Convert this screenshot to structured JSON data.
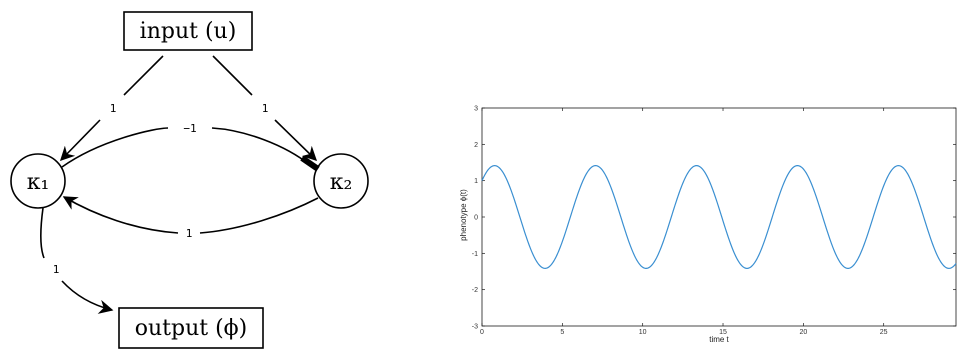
{
  "diagram": {
    "nodes": {
      "input": "input (u)",
      "output": "output (ϕ)",
      "k1": "κ₁",
      "k2": "κ₂"
    },
    "edges": {
      "input_to_k1": "1",
      "input_to_k2": "1",
      "k1_to_k2": "−1",
      "k2_to_k1": "1",
      "k1_to_output": "1"
    }
  },
  "chart_data": {
    "type": "line",
    "title": "",
    "xlabel": "time t",
    "ylabel": "phenotype ϕ(t)",
    "xlim": [
      0,
      29.5
    ],
    "ylim": [
      -3,
      3
    ],
    "x_ticks": [
      0,
      5,
      10,
      15,
      20,
      25
    ],
    "y_ticks": [
      -3,
      -2,
      -1,
      0,
      1,
      2,
      3
    ],
    "grid": false,
    "series": [
      {
        "color": "#3a8fd1",
        "function": "sqrt(2)*sin(t + pi/4)",
        "x": [
          0,
          0.785,
          2.356,
          3.927,
          5.498,
          7.069,
          8.639,
          10.21,
          11.781,
          13.352,
          14.923,
          16.493,
          18.064,
          19.635,
          21.206,
          22.777,
          24.347,
          25.918,
          27.489,
          29.06,
          29.5
        ],
        "values": [
          1.0,
          1.414,
          0.0,
          -1.414,
          0.0,
          1.414,
          0.0,
          -1.414,
          0.0,
          1.414,
          0.0,
          -1.414,
          0.0,
          1.414,
          0.0,
          -1.414,
          0.0,
          1.414,
          0.0,
          -1.414,
          -1.28
        ]
      }
    ]
  }
}
